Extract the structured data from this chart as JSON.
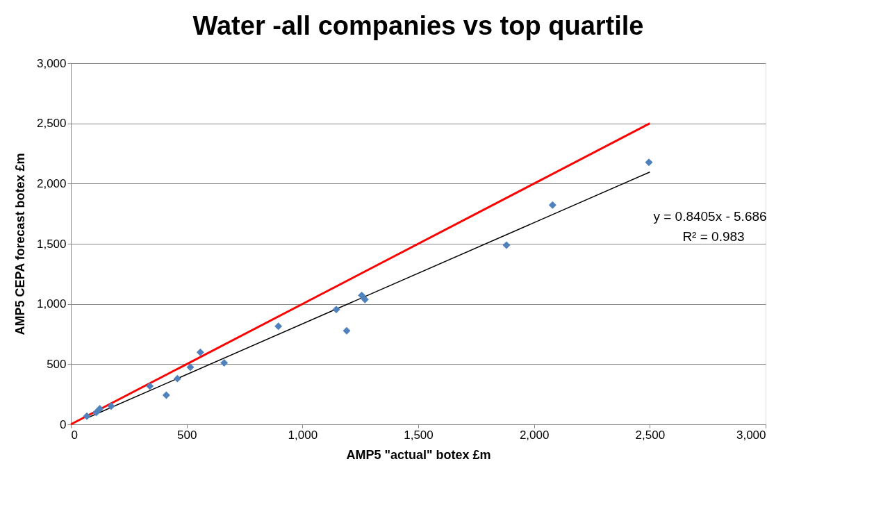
{
  "chart_data": {
    "type": "scatter",
    "title": "Water -all companies vs top quartile",
    "xlabel": "AMP5 \"actual\" botex £m",
    "ylabel": "AMP5 CEPA forecast botex £m",
    "series": [
      {
        "color": "#4f81bd",
        "marker": "diamond",
        "x": [
          69,
          110,
          125,
          174,
          341,
          412,
          460,
          516,
          559,
          662,
          896,
          1146,
          1191,
          1256,
          1270,
          1881,
          2080,
          2496
        ],
        "values": [
          68,
          100,
          130,
          152,
          318,
          242,
          380,
          474,
          598,
          511,
          815,
          954,
          777,
          1071,
          1037,
          1488,
          1822,
          2177
        ]
      },
      {
        "type": "line",
        "color": "#ff0000",
        "x": [
          0,
          2500
        ],
        "values": [
          0,
          2500
        ]
      },
      {
        "type": "line",
        "color": "#000000",
        "x": [
          69,
          2500
        ],
        "values": [
          52,
          2096
        ]
      }
    ],
    "annotations": [
      "y = 0.8405x - 5.686",
      "R² = 0.983"
    ],
    "xlim": [
      0,
      3000
    ],
    "xticks": [
      0,
      500,
      {
        "value": 1000,
        "label": "1,000"
      },
      {
        "value": 1500,
        "label": "1,500"
      },
      {
        "value": 2000,
        "label": "2,000"
      },
      {
        "value": 2500,
        "label": "2,500"
      },
      {
        "value": 3000,
        "label": "3,000"
      }
    ],
    "ylim": [
      0,
      3000
    ],
    "yticks": [
      0,
      500,
      {
        "value": 1000,
        "label": "1,000"
      },
      {
        "value": 1500,
        "label": "1,500"
      },
      {
        "value": 2000,
        "label": "2,000"
      },
      {
        "value": 2500,
        "label": "2,500"
      },
      {
        "value": 3000,
        "label": "3,000"
      }
    ],
    "grid": "y"
  }
}
